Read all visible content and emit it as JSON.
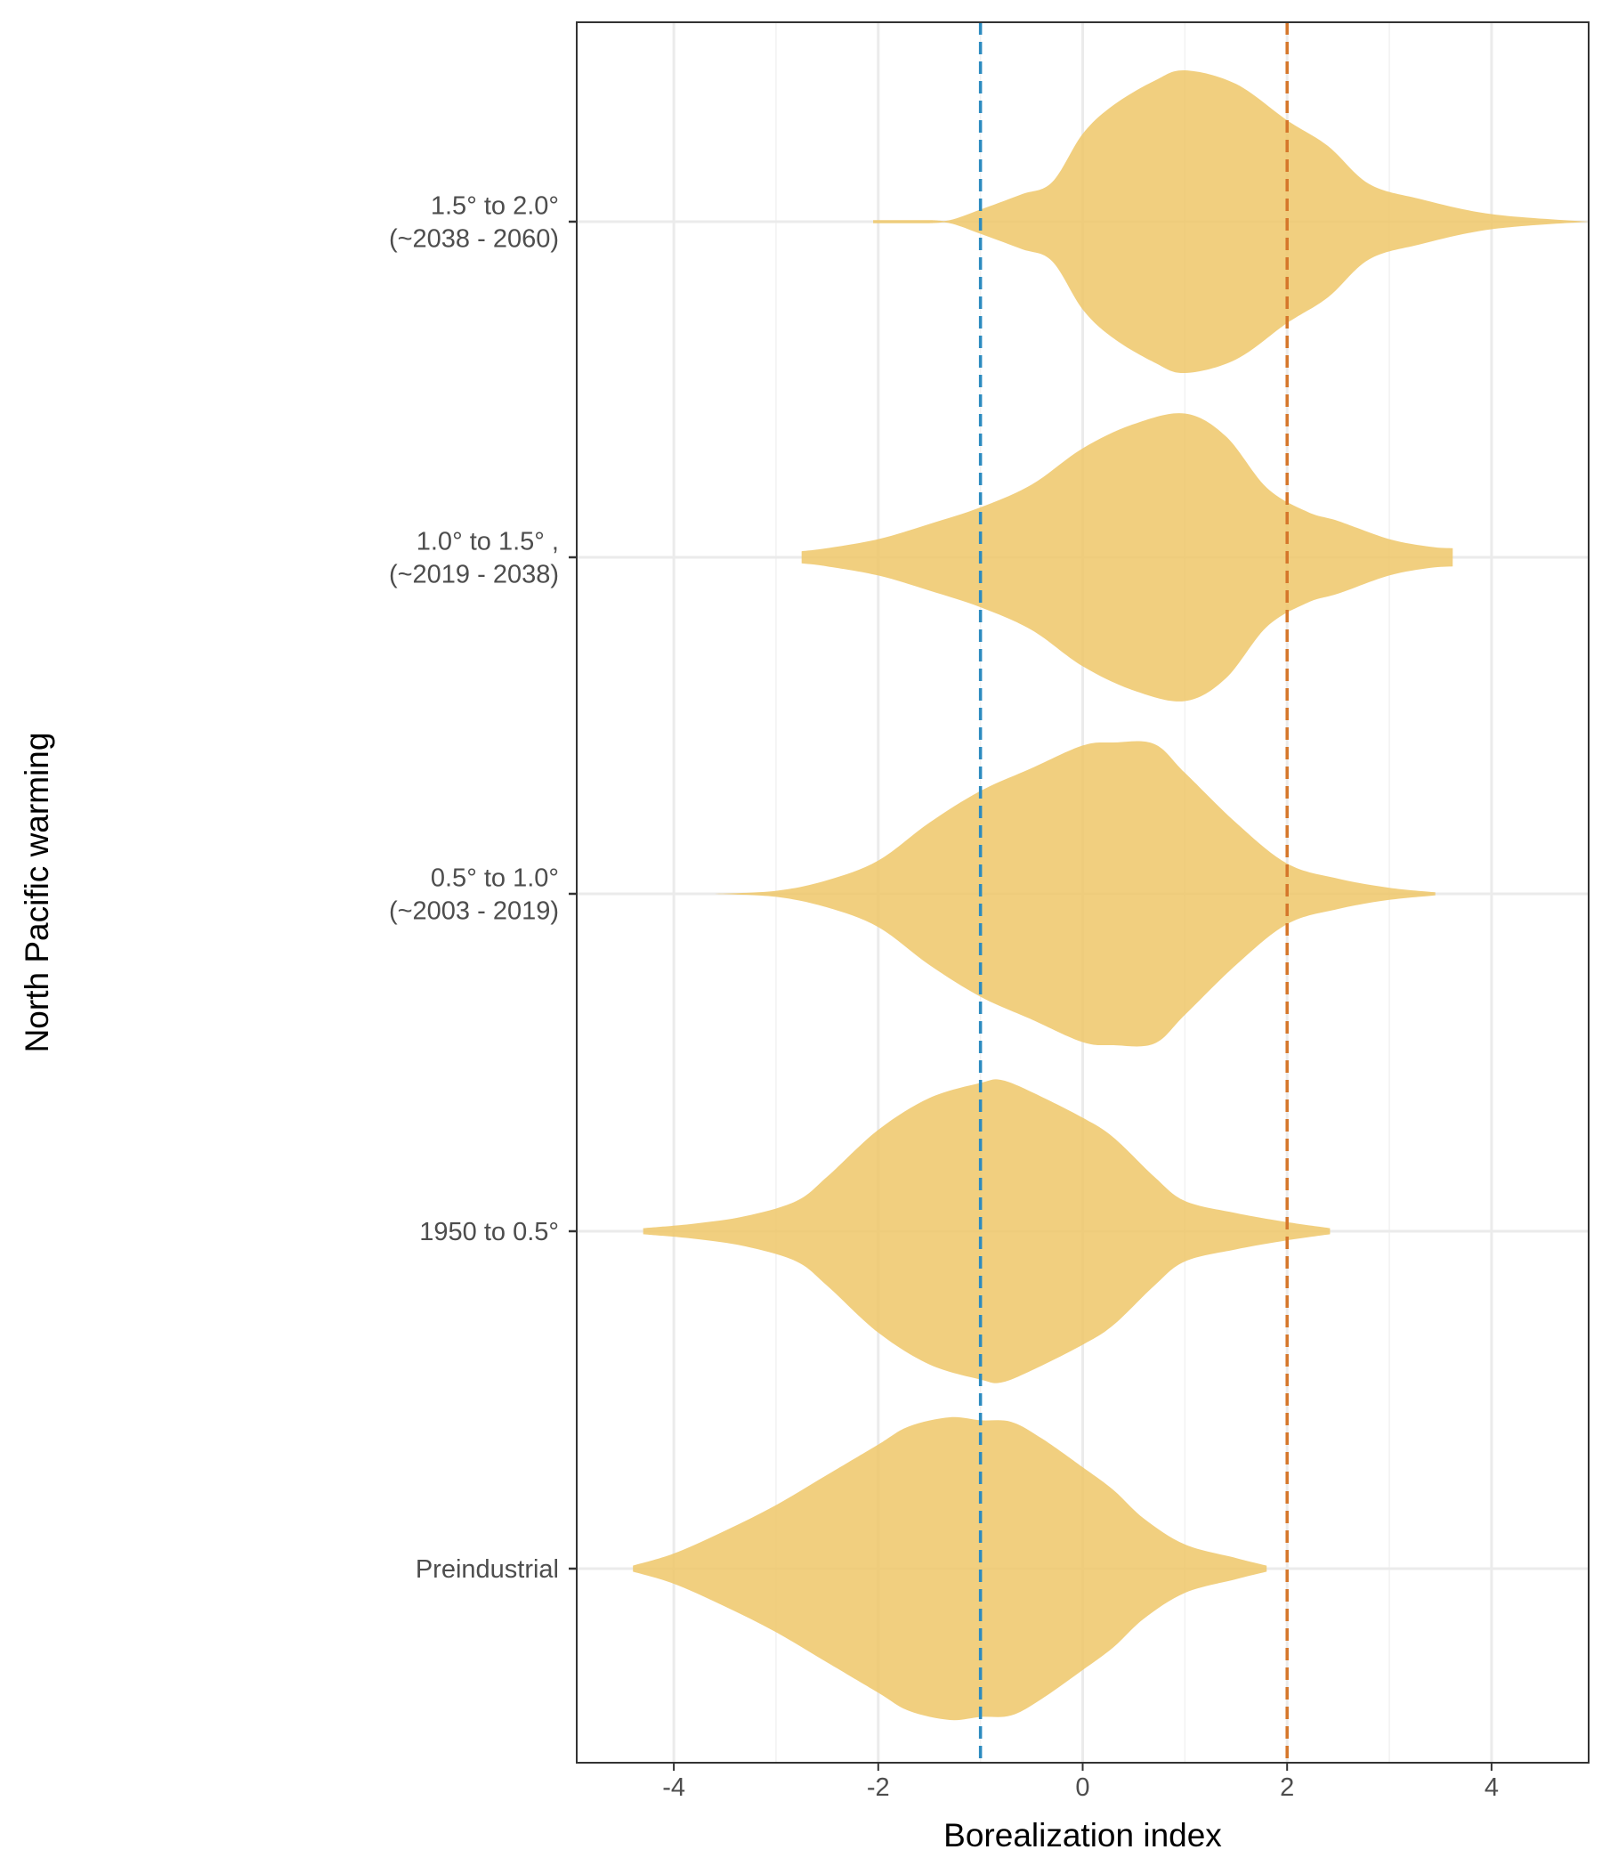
{
  "chart_data": {
    "type": "violin",
    "orientation": "horizontal",
    "xlabel": "Borealization index",
    "ylabel": "North Pacific warming",
    "xlim": [
      -4.95,
      4.95
    ],
    "x_ticks": [
      -4,
      -2,
      0,
      2,
      4
    ],
    "x_tick_labels": [
      "-4",
      "-2",
      "0",
      "2",
      "4"
    ],
    "grid": true,
    "fill_color": "#EEC463",
    "reference_lines": [
      {
        "x": -1,
        "color": "#2C8BC0",
        "style": "dashed"
      },
      {
        "x": 2,
        "color": "#D5762A",
        "style": "dashed"
      }
    ],
    "categories": [
      {
        "label_lines": [
          "Preindustrial"
        ],
        "profile": [
          [
            -4.4,
            0.02
          ],
          [
            -4.0,
            0.1
          ],
          [
            -3.5,
            0.25
          ],
          [
            -3.0,
            0.42
          ],
          [
            -2.5,
            0.62
          ],
          [
            -2.0,
            0.82
          ],
          [
            -1.7,
            0.94
          ],
          [
            -1.3,
            1.0
          ],
          [
            -1.0,
            0.98
          ],
          [
            -0.7,
            0.97
          ],
          [
            -0.4,
            0.86
          ],
          [
            0.0,
            0.67
          ],
          [
            0.3,
            0.52
          ],
          [
            0.6,
            0.33
          ],
          [
            1.0,
            0.16
          ],
          [
            1.5,
            0.07
          ],
          [
            1.8,
            0.02
          ]
        ]
      },
      {
        "label_lines": [
          "1950 to 0.5°"
        ],
        "profile": [
          [
            -4.3,
            0.02
          ],
          [
            -3.8,
            0.05
          ],
          [
            -3.3,
            0.1
          ],
          [
            -2.8,
            0.2
          ],
          [
            -2.5,
            0.36
          ],
          [
            -2.0,
            0.67
          ],
          [
            -1.5,
            0.88
          ],
          [
            -1.0,
            0.98
          ],
          [
            -0.8,
            1.0
          ],
          [
            -0.5,
            0.92
          ],
          [
            0.0,
            0.75
          ],
          [
            0.3,
            0.62
          ],
          [
            0.7,
            0.36
          ],
          [
            1.0,
            0.2
          ],
          [
            1.5,
            0.12
          ],
          [
            2.0,
            0.06
          ],
          [
            2.42,
            0.02
          ]
        ]
      },
      {
        "label_lines": [
          "0.5° to 1.0°",
          "(~2003 - 2019)"
        ],
        "profile": [
          [
            -3.6,
            0.0
          ],
          [
            -3.0,
            0.02
          ],
          [
            -2.5,
            0.09
          ],
          [
            -2.0,
            0.22
          ],
          [
            -1.5,
            0.47
          ],
          [
            -1.0,
            0.68
          ],
          [
            -0.5,
            0.83
          ],
          [
            0.0,
            0.98
          ],
          [
            0.3,
            1.0
          ],
          [
            0.7,
            0.99
          ],
          [
            1.0,
            0.8
          ],
          [
            1.5,
            0.47
          ],
          [
            2.0,
            0.2
          ],
          [
            2.5,
            0.1
          ],
          [
            3.0,
            0.04
          ],
          [
            3.45,
            0.01
          ]
        ]
      },
      {
        "label_lines": [
          "1.0° to 1.5°  ,",
          "(~2019 - 2038)"
        ],
        "profile": [
          [
            -2.75,
            0.04
          ],
          [
            -2.5,
            0.06
          ],
          [
            -2.0,
            0.12
          ],
          [
            -1.5,
            0.22
          ],
          [
            -1.0,
            0.33
          ],
          [
            -0.5,
            0.48
          ],
          [
            0.0,
            0.72
          ],
          [
            0.5,
            0.88
          ],
          [
            1.0,
            0.95
          ],
          [
            1.4,
            0.8
          ],
          [
            1.8,
            0.46
          ],
          [
            2.2,
            0.3
          ],
          [
            2.5,
            0.24
          ],
          [
            3.0,
            0.12
          ],
          [
            3.4,
            0.07
          ],
          [
            3.62,
            0.06
          ]
        ]
      },
      {
        "label_lines": [
          "1.5° to 2.0°",
          "(~2038 - 2060)"
        ],
        "profile": [
          [
            -2.05,
            0.01
          ],
          [
            -1.5,
            0.01
          ],
          [
            -1.3,
            0.01
          ],
          [
            -1.0,
            0.08
          ],
          [
            -0.6,
            0.18
          ],
          [
            -0.3,
            0.26
          ],
          [
            0.0,
            0.58
          ],
          [
            0.3,
            0.77
          ],
          [
            0.7,
            0.93
          ],
          [
            1.0,
            1.0
          ],
          [
            1.5,
            0.91
          ],
          [
            2.0,
            0.67
          ],
          [
            2.4,
            0.5
          ],
          [
            2.8,
            0.25
          ],
          [
            3.3,
            0.15
          ],
          [
            4.0,
            0.05
          ],
          [
            4.95,
            0.0
          ]
        ]
      }
    ]
  }
}
